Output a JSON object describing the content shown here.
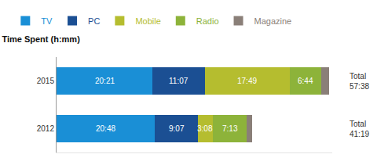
{
  "chart_data": {
    "type": "bar",
    "orientation": "horizontal",
    "stacked": true,
    "data_labels": true,
    "tick_labels": "y",
    "legend": "top-left",
    "title": "Time Spent (h:mm)",
    "categories": [
      "2015",
      "2012"
    ],
    "xlim": [
      0,
      3500
    ],
    "series": [
      {
        "name": "TV",
        "color": "#1a8fd6",
        "values": [
          1221,
          1248
        ],
        "value_labels": [
          "20:21",
          "20:48"
        ]
      },
      {
        "name": "PC",
        "color": "#1b4f93",
        "values": [
          667,
          547
        ],
        "value_labels": [
          "11:07",
          "9:07"
        ]
      },
      {
        "name": "Mobile",
        "color": "#b5bd2f",
        "values": [
          1069,
          188
        ],
        "value_labels": [
          "17:49",
          "3:08"
        ]
      },
      {
        "name": "Radio",
        "color": "#8db33a",
        "values": [
          404,
          433
        ],
        "value_labels": [
          "6:44",
          "7:13"
        ]
      },
      {
        "name": "Magazine",
        "color": "#8a7f78",
        "values": [
          97,
          63
        ],
        "value_labels": [
          null,
          null
        ]
      }
    ],
    "total_label": "Total",
    "totals": {
      "values": [
        3458,
        2479
      ],
      "value_labels": [
        "57:38",
        "41:19"
      ]
    }
  }
}
